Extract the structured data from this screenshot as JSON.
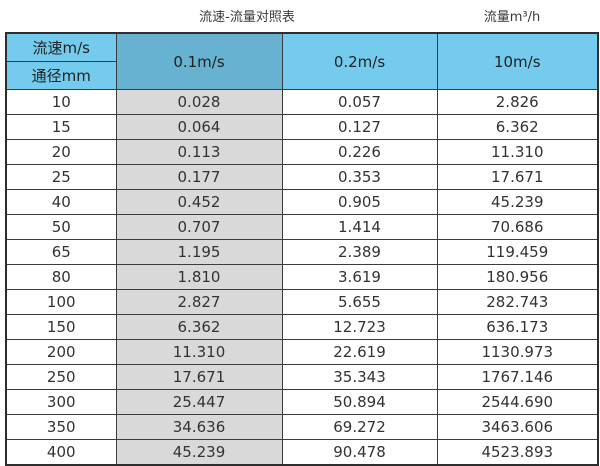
{
  "titles": {
    "main": "流速-流量对照表",
    "unit": "流量m³/h"
  },
  "table": {
    "corner_top": "流速m/s",
    "corner_bottom": "通径mm",
    "columns": [
      "0.1m/s",
      "0.2m/s",
      "10m/s"
    ],
    "rows": [
      [
        "10",
        "0.028",
        "0.057",
        "2.826"
      ],
      [
        "15",
        "0.064",
        "0.127",
        "6.362"
      ],
      [
        "20",
        "0.113",
        "0.226",
        "11.310"
      ],
      [
        "25",
        "0.177",
        "0.353",
        "17.671"
      ],
      [
        "40",
        "0.452",
        "0.905",
        "45.239"
      ],
      [
        "50",
        "0.707",
        "1.414",
        "70.686"
      ],
      [
        "65",
        "1.195",
        "2.389",
        "119.459"
      ],
      [
        "80",
        "1.810",
        "3.619",
        "180.956"
      ],
      [
        "100",
        "2.827",
        "5.655",
        "282.743"
      ],
      [
        "150",
        "6.362",
        "12.723",
        "636.173"
      ],
      [
        "200",
        "11.310",
        "22.619",
        "1130.973"
      ],
      [
        "250",
        "17.671",
        "35.343",
        "1767.146"
      ],
      [
        "300",
        "25.447",
        "50.894",
        "2544.690"
      ],
      [
        "350",
        "34.636",
        "69.272",
        "3463.606"
      ],
      [
        "400",
        "45.239",
        "90.478",
        "4523.893"
      ]
    ]
  },
  "colors": {
    "header_blue": "#74cbee",
    "header_dark_blue": "#67b1d1",
    "shaded_column_gray": "#d9d9d9",
    "border": "#3c3c3c",
    "text": "#333333"
  }
}
